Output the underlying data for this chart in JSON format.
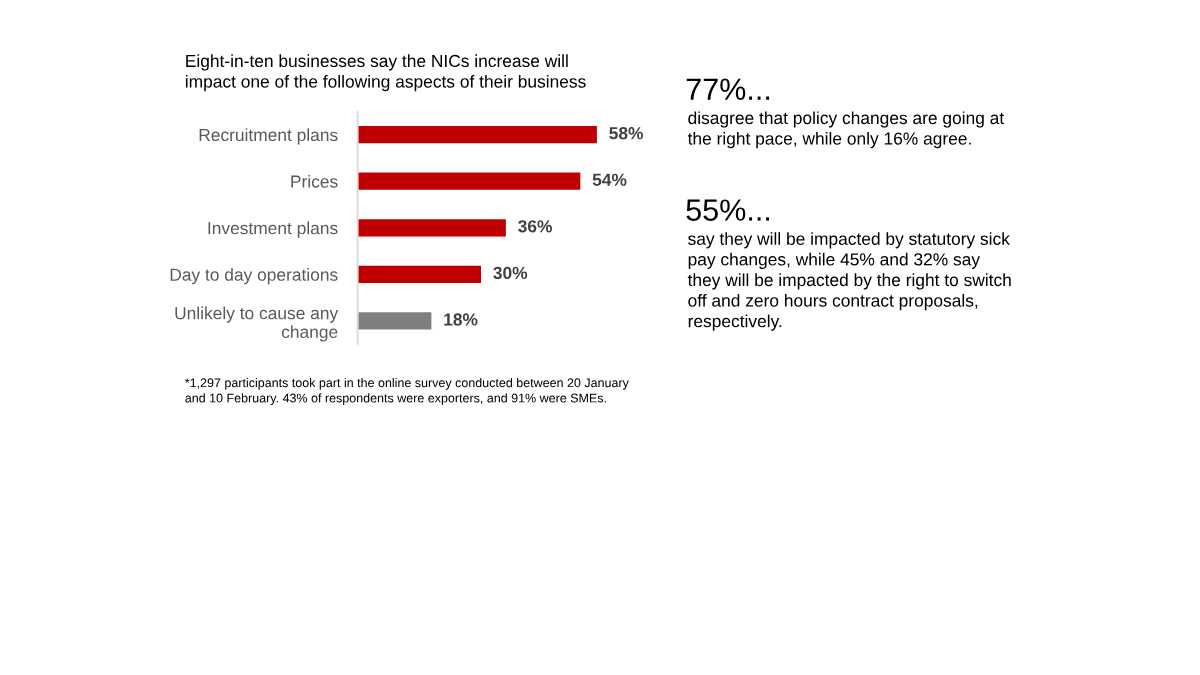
{
  "chart_data": [
    {
      "type": "bar",
      "orientation": "horizontal",
      "title": "Eight-in-ten businesses say the NICs increase will\nimpact one of the following aspects of their business",
      "categories": [
        "Recruitment plans",
        "Prices",
        "Investment plans",
        "Day to day operations",
        "Unlikely to cause any\nchange"
      ],
      "values": [
        58,
        54,
        36,
        30,
        18
      ],
      "colors": [
        "#c00000",
        "#c00000",
        "#c00000",
        "#c00000",
        "#7f7f7f"
      ],
      "value_labels": [
        "58%",
        "54%",
        "36%",
        "30%",
        "18%"
      ],
      "annotations": [
        "*1,297 participants took part in the online survey conducted between 20 January\nand 10 February. 43% of respondents were exporters, and 91% were SMEs."
      ]
    },
    {
      "type": "other",
      "annotations": [
        "77%...",
        "disagree that policy changes are going at\nthe right pace, while only 16% agree.",
        "55%...",
        "say they will be impacted by statutory sick\npay changes, while 45% and 32% say\nthey will be impacted by the right to switch\noff and zero hours contract proposals,\nrespectively."
      ]
    }
  ]
}
